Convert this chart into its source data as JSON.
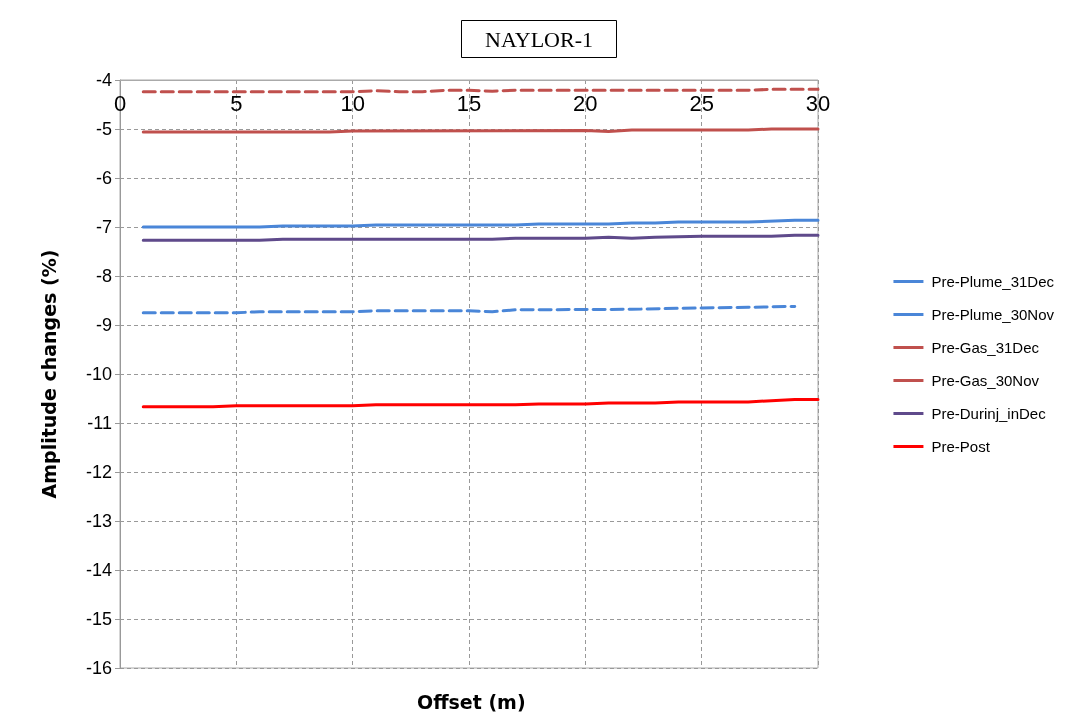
{
  "chart_data": {
    "type": "line",
    "title": "NAYLOR-1",
    "xlabel": "Offset (m)",
    "ylabel": "Amplitude changes (%)",
    "xlim": [
      0,
      30
    ],
    "xticks": [
      0,
      5,
      10,
      15,
      20,
      25,
      30
    ],
    "ylim": [
      -16,
      -4
    ],
    "yticks": [
      -16,
      -15,
      -14,
      -13,
      -12,
      -11,
      -10,
      -9,
      -8,
      -7,
      -6,
      -5,
      -4
    ],
    "grid": true,
    "legend": "right",
    "marker": "none",
    "series": [
      {
        "name": "Pre-Plume_31Dec",
        "color": "#4a86d8",
        "line_style": "solid",
        "x": [
          1,
          6,
          7,
          10,
          11,
          17,
          18,
          21,
          22,
          23,
          24,
          27,
          29,
          30
        ],
        "values": [
          -7.0,
          -7.0,
          -6.98,
          -6.98,
          -6.96,
          -6.96,
          -6.94,
          -6.94,
          -6.92,
          -6.92,
          -6.9,
          -6.9,
          -6.86,
          -6.86
        ]
      },
      {
        "name": "Pre-Plume_30Nov",
        "color": "#4a86d8",
        "line_style": "dashed",
        "x": [
          1,
          5,
          6,
          10,
          11,
          15,
          16,
          17,
          22,
          24,
          27,
          29
        ],
        "values": [
          -8.75,
          -8.75,
          -8.73,
          -8.73,
          -8.71,
          -8.71,
          -8.73,
          -8.69,
          -8.68,
          -8.66,
          -8.64,
          -8.62
        ]
      },
      {
        "name": "Pre-Gas_31Dec",
        "color": "#c0504d",
        "line_style": "solid",
        "x": [
          1,
          9,
          10,
          20,
          21,
          22,
          27,
          28,
          30
        ],
        "values": [
          -5.06,
          -5.06,
          -5.04,
          -5.03,
          -5.05,
          -5.02,
          -5.02,
          -5.0,
          -5.0
        ]
      },
      {
        "name": "Pre-Gas_30Nov",
        "color": "#c0504d",
        "line_style": "dashed",
        "x": [
          1,
          10,
          11,
          12,
          13,
          14,
          15,
          16,
          17,
          27,
          28,
          30
        ],
        "values": [
          -4.24,
          -4.24,
          -4.22,
          -4.24,
          -4.24,
          -4.21,
          -4.21,
          -4.23,
          -4.21,
          -4.21,
          -4.19,
          -4.19
        ]
      },
      {
        "name": "Pre-Durinj_inDec",
        "color": "#5f4a8b",
        "line_style": "solid",
        "x": [
          1,
          6,
          7,
          16,
          17,
          20,
          21,
          22,
          23,
          25,
          28,
          29,
          30
        ],
        "values": [
          -7.27,
          -7.27,
          -7.25,
          -7.25,
          -7.23,
          -7.23,
          -7.21,
          -7.23,
          -7.21,
          -7.19,
          -7.19,
          -7.17,
          -7.17
        ]
      },
      {
        "name": "Pre-Post",
        "color": "#ff0000",
        "line_style": "solid",
        "x": [
          1,
          4,
          5,
          10,
          11,
          17,
          18,
          20,
          21,
          23,
          24,
          27,
          29,
          30
        ],
        "values": [
          -10.67,
          -10.67,
          -10.65,
          -10.65,
          -10.63,
          -10.63,
          -10.61,
          -10.61,
          -10.59,
          -10.59,
          -10.57,
          -10.57,
          -10.52,
          -10.52
        ]
      }
    ]
  }
}
